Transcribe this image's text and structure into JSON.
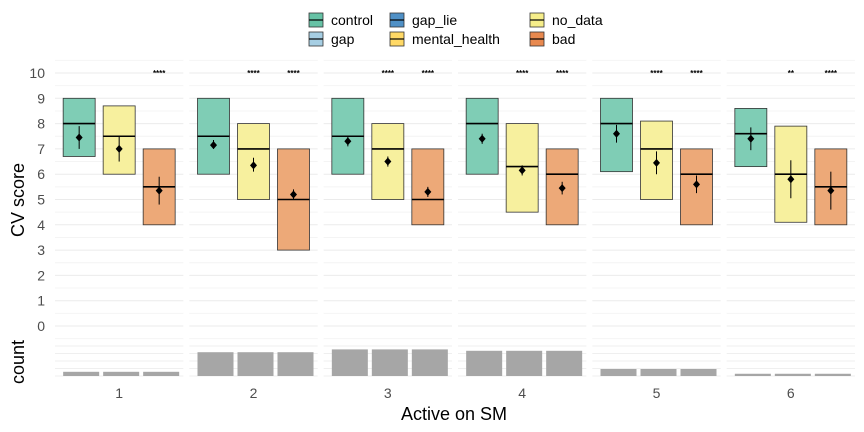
{
  "chart_data": {
    "type": "box",
    "xlabel": "Active on SM",
    "ylabel": "CV score",
    "count_label": "count",
    "categories": [
      "1",
      "2",
      "3",
      "4",
      "5",
      "6"
    ],
    "yticks": [
      "0",
      "1",
      "2",
      "3",
      "4",
      "5",
      "6",
      "7",
      "8",
      "9",
      "10"
    ],
    "ylim": [
      0,
      10
    ],
    "grid": true,
    "legend": {
      "position": "top",
      "entries": [
        {
          "name": "control",
          "color": "#66c2a5"
        },
        {
          "name": "gap",
          "color": "#a6cee3"
        },
        {
          "name": "gap_lie",
          "color": "#4f90c6"
        },
        {
          "name": "mental_health",
          "color": "#ffd966"
        },
        {
          "name": "no_data",
          "color": "#f6ee8a"
        },
        {
          "name": "bad",
          "color": "#e8894f"
        }
      ]
    },
    "plotted_groups": [
      {
        "name": "control",
        "fill": "#7fcdb5"
      },
      {
        "name": "no_data",
        "fill": "#f7f09e"
      },
      {
        "name": "bad",
        "fill": "#eda978"
      }
    ],
    "panels": [
      {
        "category": "1",
        "boxes": [
          {
            "group": "control",
            "q1": 6.7,
            "median": 8.0,
            "q3": 9.0,
            "mean": 7.45,
            "ci": [
              7.0,
              7.9
            ],
            "sig": ""
          },
          {
            "group": "no_data",
            "q1": 6.0,
            "median": 7.5,
            "q3": 8.7,
            "mean": 7.0,
            "ci": [
              6.5,
              7.5
            ],
            "sig": ""
          },
          {
            "group": "bad",
            "q1": 4.0,
            "median": 5.5,
            "q3": 7.0,
            "mean": 5.35,
            "ci": [
              4.8,
              5.9
            ],
            "sig": "****"
          }
        ],
        "count": 0.15
      },
      {
        "category": "2",
        "boxes": [
          {
            "group": "control",
            "q1": 6.0,
            "median": 7.5,
            "q3": 9.0,
            "mean": 7.15,
            "ci": [
              7.0,
              7.35
            ],
            "sig": ""
          },
          {
            "group": "no_data",
            "q1": 5.0,
            "median": 7.0,
            "q3": 8.0,
            "mean": 6.35,
            "ci": [
              6.1,
              6.65
            ],
            "sig": "****"
          },
          {
            "group": "bad",
            "q1": 3.0,
            "median": 5.0,
            "q3": 7.0,
            "mean": 5.2,
            "ci": [
              5.0,
              5.4
            ],
            "sig": "****"
          }
        ],
        "count": 0.85
      },
      {
        "category": "3",
        "boxes": [
          {
            "group": "control",
            "q1": 6.0,
            "median": 7.5,
            "q3": 9.0,
            "mean": 7.3,
            "ci": [
              7.1,
              7.5
            ],
            "sig": ""
          },
          {
            "group": "no_data",
            "q1": 5.0,
            "median": 7.0,
            "q3": 8.0,
            "mean": 6.5,
            "ci": [
              6.3,
              6.7
            ],
            "sig": "****"
          },
          {
            "group": "bad",
            "q1": 4.0,
            "median": 5.0,
            "q3": 7.0,
            "mean": 5.3,
            "ci": [
              5.1,
              5.5
            ],
            "sig": "****"
          }
        ],
        "count": 0.95
      },
      {
        "category": "4",
        "boxes": [
          {
            "group": "control",
            "q1": 6.0,
            "median": 8.0,
            "q3": 9.0,
            "mean": 7.4,
            "ci": [
              7.2,
              7.6
            ],
            "sig": ""
          },
          {
            "group": "no_data",
            "q1": 4.5,
            "median": 6.3,
            "q3": 8.0,
            "mean": 6.15,
            "ci": [
              5.95,
              6.35
            ],
            "sig": "****"
          },
          {
            "group": "bad",
            "q1": 4.0,
            "median": 6.0,
            "q3": 7.0,
            "mean": 5.45,
            "ci": [
              5.2,
              5.7
            ],
            "sig": "****"
          }
        ],
        "count": 0.9
      },
      {
        "category": "5",
        "boxes": [
          {
            "group": "control",
            "q1": 6.1,
            "median": 8.0,
            "q3": 9.0,
            "mean": 7.6,
            "ci": [
              7.25,
              7.95
            ],
            "sig": ""
          },
          {
            "group": "no_data",
            "q1": 5.0,
            "median": 7.0,
            "q3": 8.1,
            "mean": 6.45,
            "ci": [
              6.0,
              6.9
            ],
            "sig": "****"
          },
          {
            "group": "bad",
            "q1": 4.0,
            "median": 6.0,
            "q3": 7.0,
            "mean": 5.6,
            "ci": [
              5.25,
              5.95
            ],
            "sig": "****"
          }
        ],
        "count": 0.25
      },
      {
        "category": "6",
        "boxes": [
          {
            "group": "control",
            "q1": 6.3,
            "median": 7.6,
            "q3": 8.6,
            "mean": 7.4,
            "ci": [
              6.95,
              7.85
            ],
            "sig": ""
          },
          {
            "group": "no_data",
            "q1": 4.1,
            "median": 6.0,
            "q3": 7.9,
            "mean": 5.8,
            "ci": [
              5.05,
              6.55
            ],
            "sig": "**"
          },
          {
            "group": "bad",
            "q1": 4.0,
            "median": 5.5,
            "q3": 7.0,
            "mean": 5.35,
            "ci": [
              4.6,
              6.1
            ],
            "sig": "****"
          }
        ],
        "count": 0.08
      }
    ]
  }
}
